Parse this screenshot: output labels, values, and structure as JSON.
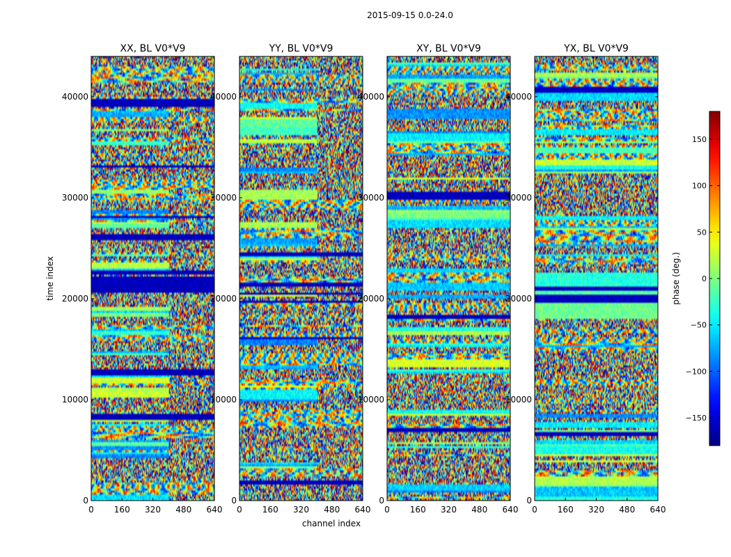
{
  "figure": {
    "suptitle": "2015-09-15 0.0-24.0"
  },
  "chart_data": {
    "type": "heatmap",
    "colormap": "jet",
    "shared_xlabel": "channel index",
    "shared_ylabel": "time index",
    "xlim": [
      0,
      640
    ],
    "ylim": [
      0,
      44000
    ],
    "xticks": [
      "0",
      "160",
      "320",
      "480",
      "640"
    ],
    "xtick_values": [
      0,
      160,
      320,
      480,
      640
    ],
    "yticks": [
      "0",
      "10000",
      "20000",
      "30000",
      "40000"
    ],
    "ytick_values": [
      0,
      10000,
      20000,
      30000,
      40000
    ],
    "grid": false,
    "panels": [
      {
        "title": "XX, BL V0*V9",
        "corr": "XX"
      },
      {
        "title": "YY, BL V0*V9",
        "corr": "YY"
      },
      {
        "title": "XY, BL V0*V9",
        "corr": "XY"
      },
      {
        "title": "YX, BL V0*V9",
        "corr": "YX"
      }
    ],
    "colorbar": {
      "label": "phase (deg.)",
      "range": [
        -180,
        180
      ],
      "ticks": [
        "150",
        "100",
        "50",
        "0",
        "−50",
        "−100",
        "−150"
      ],
      "tick_values": [
        150,
        100,
        50,
        0,
        -50,
        -100,
        -150
      ]
    }
  }
}
